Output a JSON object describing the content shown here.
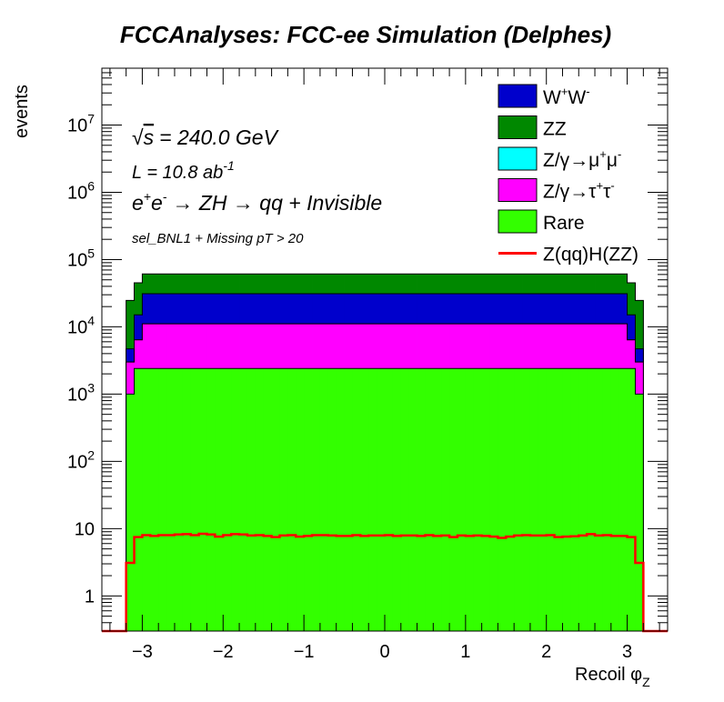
{
  "chart_data": {
    "type": "stacked-histogram",
    "title": "FCCAnalyses: FCC-ee Simulation (Delphes)",
    "xlabel": "Recoil φ",
    "xlabel_sub": "Z",
    "ylabel": "events",
    "xlim": [
      -3.5,
      3.5
    ],
    "ylim": [
      0.3,
      70000000.0
    ],
    "y_scale": "log",
    "grid": false,
    "legend_position": "top-right",
    "annotations": {
      "sqrt_s": "= 240.0 GeV",
      "lumi_prefix": "L = 10.8 ab",
      "lumi_exp": "-1",
      "process": "→ ZH → qq + Invisible",
      "selection": "sel_BNL1 + Missing pT > 20"
    },
    "x_ticks": [
      {
        "v": -3,
        "label": "−3"
      },
      {
        "v": -2,
        "label": "−2"
      },
      {
        "v": -1,
        "label": "−1"
      },
      {
        "v": 0,
        "label": "0"
      },
      {
        "v": 1,
        "label": "1"
      },
      {
        "v": 2,
        "label": "2"
      },
      {
        "v": 3,
        "label": "3"
      }
    ],
    "y_ticks": [
      {
        "v": 1,
        "base": "1",
        "exp": ""
      },
      {
        "v": 10,
        "base": "10",
        "exp": ""
      },
      {
        "v": 100,
        "base": "10",
        "exp": "2"
      },
      {
        "v": 1000,
        "base": "10",
        "exp": "3"
      },
      {
        "v": 10000,
        "base": "10",
        "exp": "4"
      },
      {
        "v": 100000,
        "base": "10",
        "exp": "5"
      },
      {
        "v": 1000000,
        "base": "10",
        "exp": "6"
      },
      {
        "v": 10000000,
        "base": "10",
        "exp": "7"
      }
    ],
    "bins": {
      "edges_start": -3.2,
      "edge_width": 0.1,
      "count": 64
    },
    "stacked_series": [
      {
        "key": "rare",
        "name": "Rare",
        "color": "#33ff00",
        "edge": [
          1000,
          2400
        ],
        "plateau": 2400
      },
      {
        "key": "tautau",
        "name": "Z/γ→τ⁺τ⁻",
        "color": "#ff00ff",
        "edge": [
          2000,
          4000
        ],
        "plateau": 8700
      },
      {
        "key": "mumu",
        "name": "Z/γ→μ⁺μ⁻",
        "color": "#00ffff",
        "edge": [
          0,
          0
        ],
        "plateau": 0
      },
      {
        "key": "ww",
        "name": "W⁺W⁻",
        "color": "#0000cc",
        "edge": [
          1700,
          8700
        ],
        "plateau": 20000
      },
      {
        "key": "zz",
        "name": "ZZ",
        "color": "#008800",
        "edge": [
          20000,
          30000
        ],
        "plateau": 30000
      }
    ],
    "signal": {
      "name": "Z(qq)H(ZZ)",
      "color": "#ff0000",
      "values": [
        3.1,
        7.5,
        8.0,
        7.8,
        8.0,
        8.0,
        8.2,
        8.3,
        8.0,
        8.4,
        8.2,
        7.6,
        8.0,
        8.3,
        8.2,
        7.9,
        8.0,
        7.8,
        7.5,
        7.9,
        8.0,
        7.6,
        7.8,
        8.0,
        8.0,
        7.9,
        7.8,
        7.8,
        8.0,
        7.8,
        7.9,
        7.9,
        8.0,
        7.8,
        7.9,
        7.9,
        7.8,
        8.0,
        7.8,
        7.9,
        7.5,
        7.9,
        7.8,
        7.9,
        7.8,
        7.6,
        7.3,
        7.6,
        7.9,
        8.0,
        7.9,
        7.9,
        8.0,
        7.5,
        7.6,
        7.7,
        7.9,
        8.3,
        7.9,
        8.0,
        7.8,
        7.8,
        7.5,
        3.1
      ]
    },
    "legend_order": [
      "ww",
      "zz",
      "mumu",
      "tautau",
      "rare",
      "signal"
    ],
    "legend_labels": {
      "ww": {
        "main": "W",
        "sup1": "+",
        "mid": "W",
        "sup2": "-"
      },
      "zz": {
        "main": "ZZ"
      },
      "mumu": {
        "main": "Z/γ→μ",
        "sup1": "+",
        "mid": "μ",
        "sup2": "-"
      },
      "tautau": {
        "main": "Z/γ→τ",
        "sup1": "+",
        "mid": "τ",
        "sup2": "-"
      },
      "rare": {
        "main": "Rare"
      },
      "signal": {
        "main": "Z(qq)H(ZZ)"
      }
    }
  }
}
